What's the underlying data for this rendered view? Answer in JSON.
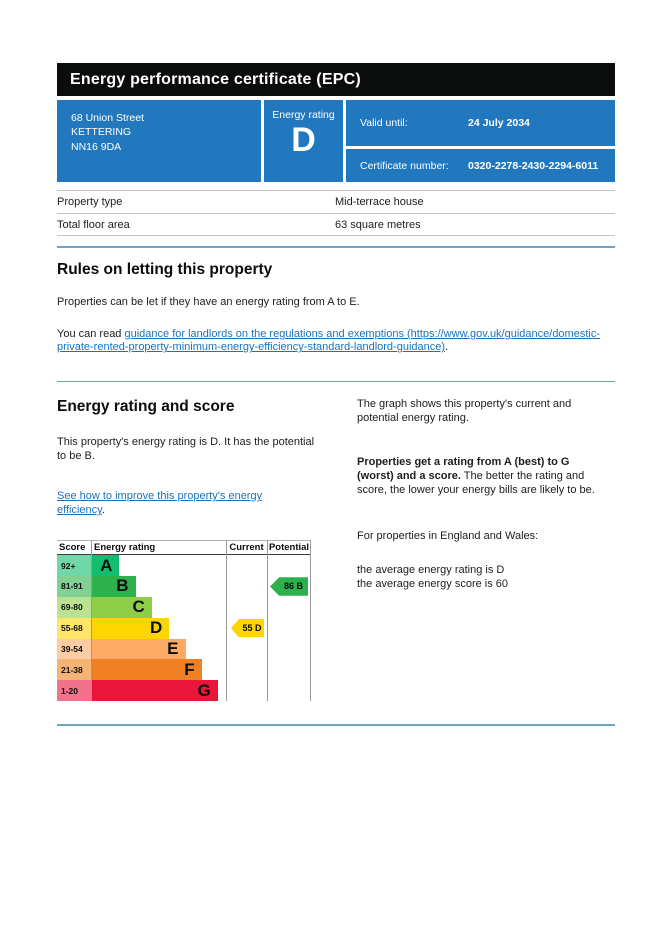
{
  "header": {
    "title": "Energy performance certificate (EPC)"
  },
  "summary": {
    "address_line1": "68 Union Street",
    "address_line2": "KETTERING",
    "address_line3": "NN16 9DA",
    "energy_rating_label": "Energy rating",
    "energy_rating": "D",
    "valid_until_label": "Valid until:",
    "valid_until_value": "24 July 2034",
    "certificate_number_label": "Certificate number:",
    "certificate_number_value": "0320-2278-2430-2294-6011",
    "panel_color": "#2178bf"
  },
  "property_details": {
    "rows": [
      {
        "label": "Property type",
        "value": "Mid-terrace house"
      },
      {
        "label": "Total floor area",
        "value": "63 square metres"
      }
    ]
  },
  "rules_section": {
    "heading": "Rules on letting this property",
    "paragraph": "Properties can be let if they have an energy rating from A to E.",
    "link_intro": "You can read ",
    "link_text": "guidance for landlords on the regulations and exemptions (https://www.gov.uk/guidance/domestic-private-rented-property-minimum-energy-efficiency-standard-landlord-guidance)",
    "link_suffix": "."
  },
  "rating_section": {
    "heading": "Energy rating and score",
    "lead": "This property's energy rating is D. It has the potential to be B.",
    "improve_link_text": "See how to improve this property's energy efficiency",
    "improve_link_suffix": "."
  },
  "graph_description": {
    "para1": "The graph shows this property's current and potential energy rating.",
    "para2_bold": "Properties get a rating from A (best) to G (worst) and a score.",
    "para2_rest": " The better the rating and score, the lower your energy bills are likely to be.",
    "para3": "For properties in England and Wales:",
    "para4_line1": "the average energy rating is D",
    "para4_line2": "the average energy score is 60"
  },
  "chart_data": {
    "type": "bar",
    "title": "EPC energy rating bands with current and potential scores",
    "headers": {
      "score": "Score",
      "rating": "Energy rating",
      "current": "Current",
      "potential": "Potential"
    },
    "bands": [
      {
        "letter": "A",
        "score_range": "92+",
        "color": "#12bd6f",
        "tint": "#70d7a9",
        "width_pct": 21
      },
      {
        "letter": "B",
        "score_range": "81-91",
        "color": "#2db14c",
        "tint": "#81d094",
        "width_pct": 33
      },
      {
        "letter": "C",
        "score_range": "69-80",
        "color": "#8dce46",
        "tint": "#bbe290",
        "width_pct": 45
      },
      {
        "letter": "D",
        "score_range": "55-68",
        "color": "#ffd500",
        "tint": "#ffe666",
        "width_pct": 58
      },
      {
        "letter": "E",
        "score_range": "39-54",
        "color": "#fcaa65",
        "tint": "#fdcca3",
        "width_pct": 70
      },
      {
        "letter": "F",
        "score_range": "21-38",
        "color": "#ef8023",
        "tint": "#f5b375",
        "width_pct": 82
      },
      {
        "letter": "G",
        "score_range": "1-20",
        "color": "#e9153b",
        "tint": "#f27389",
        "width_pct": 94
      }
    ],
    "current": {
      "label": "55 D",
      "score": 55,
      "letter": "D",
      "band_index": 3,
      "color": "#ffd500"
    },
    "potential": {
      "label": "86 B",
      "score": 86,
      "letter": "B",
      "band_index": 1,
      "color": "#2db14c"
    }
  }
}
